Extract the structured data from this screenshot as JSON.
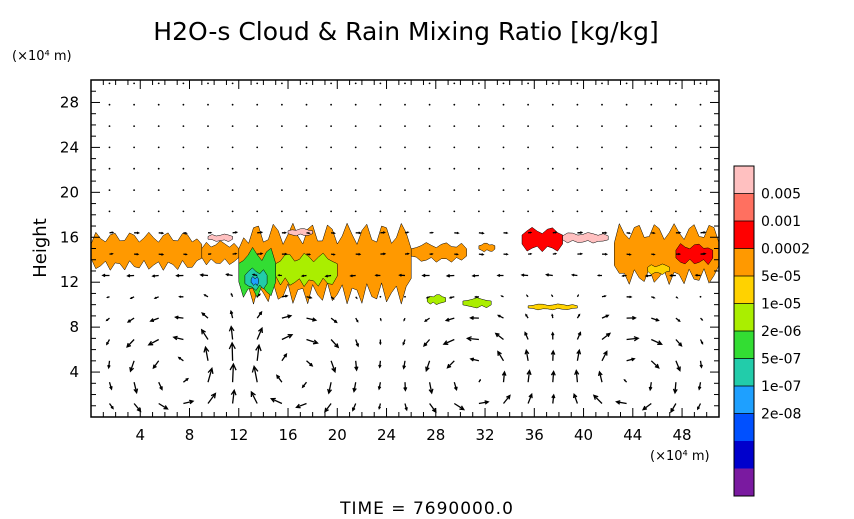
{
  "chart_data": {
    "type": "heatmap",
    "title": "H2O-s Cloud & Rain Mixing Ratio [kg/kg]",
    "ylabel": "Height",
    "yunit": "(×10⁴ m)",
    "xunit": "(×10⁴ m)",
    "xlim": [
      0,
      51
    ],
    "ylim": [
      0,
      30
    ],
    "xticks": [
      4,
      8,
      12,
      16,
      20,
      24,
      28,
      32,
      36,
      40,
      44,
      48
    ],
    "yticks": [
      4,
      8,
      12,
      16,
      20,
      24,
      28
    ],
    "colorbar": {
      "labels": [
        "0.005",
        "0.001",
        "0.0002",
        "5e-05",
        "1e-05",
        "2e-06",
        "5e-07",
        "1e-07",
        "2e-08"
      ],
      "colors": [
        "#ffc0c0",
        "#ff7060",
        "#ff0000",
        "#ff9900",
        "#ffd200",
        "#aaee00",
        "#33dd33",
        "#22ccaa",
        "#1ea0ff",
        "#0050ff",
        "#0000cc",
        "#7a1aa0"
      ]
    },
    "cloud_regions": [
      {
        "x0": 0,
        "x1": 9,
        "ybot": 13.5,
        "ytop": 16,
        "level": 8
      },
      {
        "x0": 9,
        "x1": 12,
        "ybot": 13.8,
        "ytop": 15.4,
        "level": 8
      },
      {
        "x0": 12,
        "x1": 26,
        "ybot": 11,
        "ytop": 16.3,
        "level": 8
      },
      {
        "x0": 26,
        "x1": 30.5,
        "ybot": 14,
        "ytop": 15.3,
        "level": 8
      },
      {
        "x0": 31.5,
        "x1": 32.8,
        "ybot": 14.8,
        "ytop": 15.4,
        "level": 8
      },
      {
        "x0": 35,
        "x1": 38.3,
        "ybot": 15,
        "ytop": 16.6,
        "level": 9
      },
      {
        "x0": 38.3,
        "x1": 42,
        "ybot": 15.6,
        "ytop": 16.3,
        "level": 11
      },
      {
        "x0": 42.5,
        "x1": 51,
        "ybot": 12.5,
        "ytop": 16.5,
        "level": 8
      },
      {
        "x0": 9.5,
        "x1": 11.5,
        "ybot": 15.7,
        "ytop": 16.2,
        "level": 11
      },
      {
        "x0": 16,
        "x1": 18,
        "ybot": 16.2,
        "ytop": 16.7,
        "level": 11
      },
      {
        "x0": 12,
        "x1": 15,
        "ybot": 11.2,
        "ytop": 14.5,
        "level": 5
      },
      {
        "x0": 15,
        "x1": 20,
        "ybot": 12,
        "ytop": 14.2,
        "level": 6
      },
      {
        "x0": 12.5,
        "x1": 14.3,
        "ybot": 11.5,
        "ytop": 13,
        "level": 4
      },
      {
        "x0": 13,
        "x1": 13.6,
        "ybot": 11.8,
        "ytop": 12.4,
        "level": 3
      },
      {
        "x0": 47.5,
        "x1": 50.5,
        "ybot": 13.8,
        "ytop": 15.2,
        "level": 9
      },
      {
        "x0": 45.2,
        "x1": 47,
        "ybot": 12.8,
        "ytop": 13.5,
        "level": 7
      },
      {
        "x0": 27.3,
        "x1": 28.8,
        "ybot": 10.1,
        "ytop": 10.8,
        "level": 6
      },
      {
        "x0": 30.2,
        "x1": 32.5,
        "ybot": 9.8,
        "ytop": 10.5,
        "level": 6
      },
      {
        "x0": 35.5,
        "x1": 39.5,
        "ybot": 9.6,
        "ytop": 10,
        "level": 7
      }
    ],
    "vortex_centers": [
      {
        "x": 7,
        "y": 4
      },
      {
        "x": 16.5,
        "y": 4
      },
      {
        "x": 31,
        "y": 3.5
      },
      {
        "x": 44,
        "y": 3.5
      }
    ]
  },
  "footer": {
    "time_label": "TIME = 7690000.0"
  }
}
